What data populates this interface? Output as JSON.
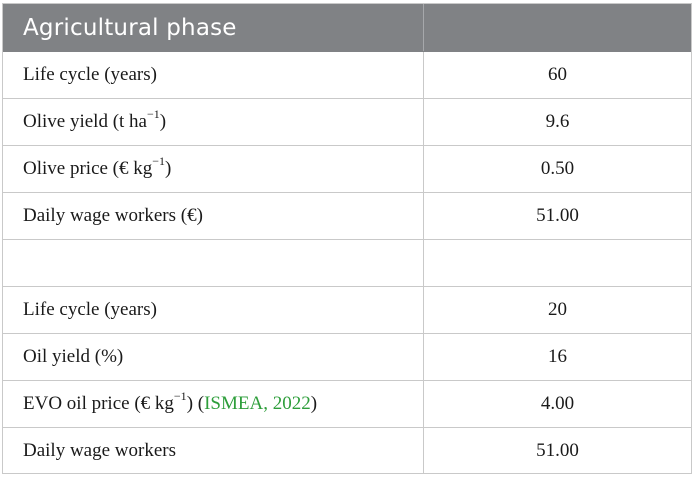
{
  "header": {
    "title": "Agricultural phase",
    "value": ""
  },
  "rows": [
    {
      "label": "Life cycle (years)",
      "value": "60"
    },
    {
      "label_main": "Olive yield (t ha",
      "label_sup": "−1",
      "label_end": ")",
      "value": "9.6"
    },
    {
      "label_main": "Olive price (€ kg",
      "label_sup": "−1",
      "label_end": ")",
      "value": "0.50"
    },
    {
      "label": "Daily wage workers (€)",
      "value": "51.00"
    },
    {
      "label": "",
      "value": ""
    },
    {
      "label": "Life cycle (years)",
      "value": "20"
    },
    {
      "label": "Oil yield (%)",
      "value": "16"
    },
    {
      "label_main": "EVO oil price (€ kg",
      "label_sup": "−1",
      "label_end": ") (",
      "citation": "ISMEA, 2022",
      "label_close": ")",
      "value": "4.00"
    },
    {
      "label": "Daily wage workers",
      "value": "51.00"
    }
  ],
  "colors": {
    "header_bg": "#808285",
    "link": "#2e9e3b",
    "border": "#c9c9c9"
  }
}
